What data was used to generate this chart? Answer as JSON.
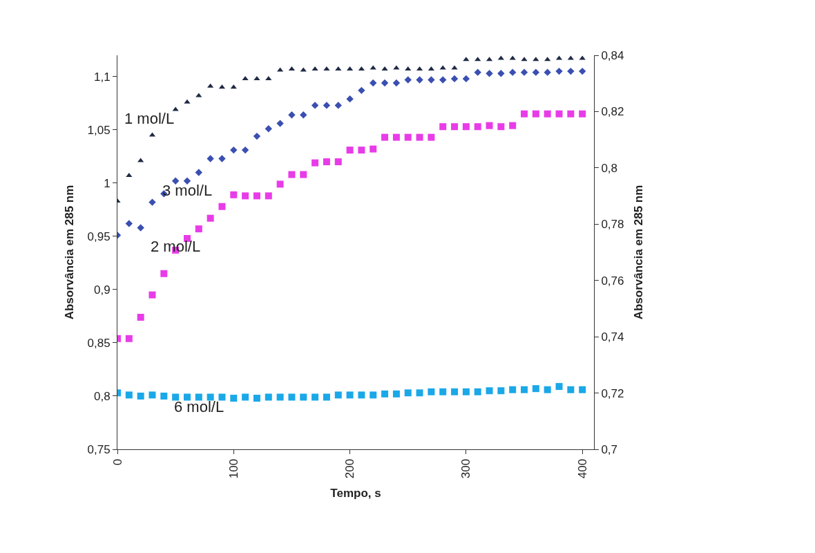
{
  "chart_data": {
    "type": "scatter",
    "xlabel": "Tempo, s",
    "ylabel": "Absorvância em 285 nm",
    "y2label": "Absorvância em 285 nm",
    "x": [
      0,
      10,
      20,
      30,
      40,
      50,
      60,
      70,
      80,
      90,
      100,
      110,
      120,
      130,
      140,
      150,
      160,
      170,
      180,
      190,
      200,
      210,
      220,
      230,
      240,
      250,
      260,
      270,
      280,
      290,
      300,
      310,
      320,
      330,
      340,
      350,
      360,
      370,
      380,
      390,
      400
    ],
    "series": [
      {
        "color": "#1f2a44",
        "marker": "triangle",
        "values": [
          0.983,
          1.007,
          1.021,
          1.045,
          null,
          1.069,
          1.076,
          1.082,
          1.091,
          1.09,
          1.09,
          1.098,
          1.098,
          1.098,
          1.106,
          1.107,
          1.106,
          1.107,
          1.107,
          1.107,
          1.107,
          1.107,
          1.108,
          1.107,
          1.108,
          1.107,
          1.107,
          1.107,
          1.108,
          1.108,
          1.116,
          1.116,
          1.116,
          1.117,
          1.117,
          1.116,
          1.116,
          1.116,
          1.117,
          1.117,
          1.117
        ]
      },
      {
        "color": "#3a4fb0",
        "marker": "diamond",
        "values": [
          0.951,
          0.962,
          0.958,
          0.982,
          0.99,
          1.002,
          1.002,
          1.01,
          1.023,
          1.023,
          1.031,
          1.031,
          1.044,
          1.051,
          1.056,
          1.064,
          1.064,
          1.073,
          1.073,
          1.073,
          1.079,
          1.087,
          1.094,
          1.094,
          1.094,
          1.097,
          1.097,
          1.097,
          1.097,
          1.098,
          1.098,
          1.104,
          1.103,
          1.103,
          1.104,
          1.104,
          1.104,
          1.104,
          1.105,
          1.105,
          1.105
        ]
      },
      {
        "color": "#e83ce8",
        "marker": "square",
        "values": [
          0.854,
          0.854,
          0.874,
          0.895,
          0.915,
          0.937,
          0.948,
          0.957,
          0.967,
          0.978,
          0.989,
          0.988,
          0.988,
          0.988,
          0.999,
          1.008,
          1.008,
          1.019,
          1.02,
          1.02,
          1.031,
          1.031,
          1.032,
          1.043,
          1.043,
          1.043,
          1.043,
          1.043,
          1.053,
          1.053,
          1.053,
          1.053,
          1.054,
          1.053,
          1.054,
          1.065,
          1.065,
          1.065,
          1.065,
          1.065,
          1.065
        ]
      },
      {
        "color": "#1aa8e8",
        "marker": "square",
        "values": [
          0.803,
          0.801,
          0.8,
          0.801,
          0.8,
          0.799,
          0.799,
          0.799,
          0.799,
          0.799,
          0.798,
          0.799,
          0.798,
          0.799,
          0.799,
          0.799,
          0.799,
          0.799,
          0.799,
          0.801,
          0.801,
          0.801,
          0.801,
          0.802,
          0.802,
          0.803,
          0.803,
          0.804,
          0.804,
          0.804,
          0.804,
          0.804,
          0.805,
          0.805,
          0.806,
          0.806,
          0.807,
          0.806,
          0.809,
          0.806,
          0.806
        ]
      }
    ],
    "annotations": [
      {
        "text": "1 mol/L",
        "x": 30,
        "y": 1.045
      },
      {
        "text": "3 mol/L",
        "x": 40,
        "y": 0.99
      },
      {
        "text": "2 mol/L",
        "x": 50,
        "y": 0.937
      },
      {
        "text": "6 mol/L",
        "x": 60,
        "y": 0.799
      }
    ],
    "xlim": [
      0,
      410
    ],
    "xticks": [
      0,
      100,
      200,
      300,
      400
    ],
    "ylim": [
      0.75,
      1.12
    ],
    "yticks": [
      {
        "value": 0.75,
        "label": "0,75"
      },
      {
        "value": 0.8,
        "label": "0,8"
      },
      {
        "value": 0.85,
        "label": "0,85"
      },
      {
        "value": 0.9,
        "label": "0,9"
      },
      {
        "value": 0.95,
        "label": "0,95"
      },
      {
        "value": 1.0,
        "label": "1"
      },
      {
        "value": 1.05,
        "label": "1,05"
      },
      {
        "value": 1.1,
        "label": "1,1"
      }
    ],
    "y2lim": [
      0.7,
      0.84
    ],
    "y2ticks": [
      {
        "value": 0.7,
        "label": "0,7"
      },
      {
        "value": 0.72,
        "label": "0,72"
      },
      {
        "value": 0.74,
        "label": "0,74"
      },
      {
        "value": 0.76,
        "label": "0,76"
      },
      {
        "value": 0.78,
        "label": "0,78"
      },
      {
        "value": 0.8,
        "label": "0,8"
      },
      {
        "value": 0.82,
        "label": "0,82"
      },
      {
        "value": 0.84,
        "label": "0,84"
      }
    ]
  }
}
